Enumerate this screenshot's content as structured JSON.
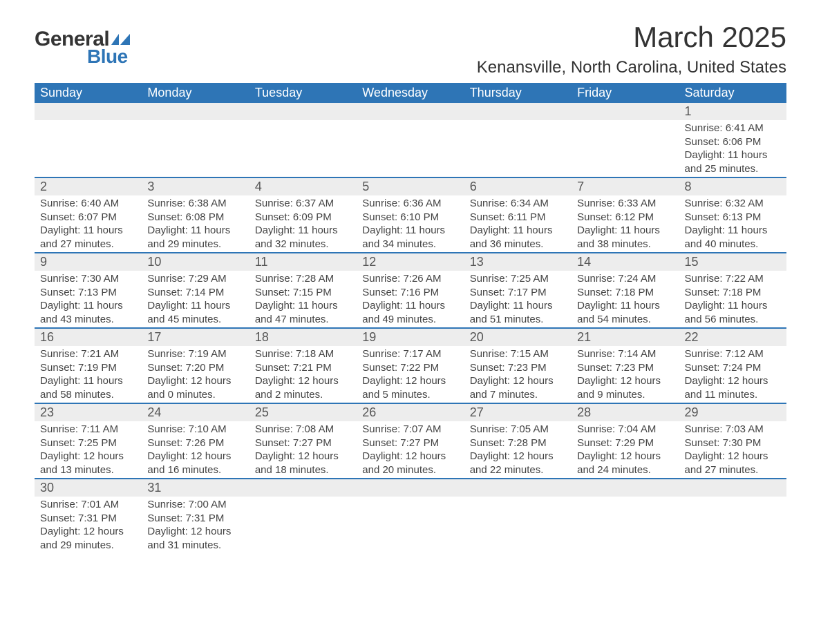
{
  "logo": {
    "general": "General",
    "blue": "Blue",
    "shape_color": "#2e75b6"
  },
  "title": {
    "month": "March 2025",
    "location": "Kenansville, North Carolina, United States"
  },
  "colors": {
    "header_bg": "#2e75b6",
    "header_text": "#ffffff",
    "daynum_bg": "#ededed",
    "text": "#444444",
    "border": "#2e75b6",
    "page_bg": "#ffffff"
  },
  "typography": {
    "title_fontsize": 42,
    "location_fontsize": 24,
    "weekday_fontsize": 18,
    "daynum_fontsize": 18,
    "body_fontsize": 15
  },
  "weekdays": [
    "Sunday",
    "Monday",
    "Tuesday",
    "Wednesday",
    "Thursday",
    "Friday",
    "Saturday"
  ],
  "labels": {
    "sunrise": "Sunrise: ",
    "sunset": "Sunset: ",
    "daylight": "Daylight: "
  },
  "weeks": [
    [
      null,
      null,
      null,
      null,
      null,
      null,
      {
        "n": "1",
        "sr": "6:41 AM",
        "ss": "6:06 PM",
        "dl": "11 hours and 25 minutes."
      }
    ],
    [
      {
        "n": "2",
        "sr": "6:40 AM",
        "ss": "6:07 PM",
        "dl": "11 hours and 27 minutes."
      },
      {
        "n": "3",
        "sr": "6:38 AM",
        "ss": "6:08 PM",
        "dl": "11 hours and 29 minutes."
      },
      {
        "n": "4",
        "sr": "6:37 AM",
        "ss": "6:09 PM",
        "dl": "11 hours and 32 minutes."
      },
      {
        "n": "5",
        "sr": "6:36 AM",
        "ss": "6:10 PM",
        "dl": "11 hours and 34 minutes."
      },
      {
        "n": "6",
        "sr": "6:34 AM",
        "ss": "6:11 PM",
        "dl": "11 hours and 36 minutes."
      },
      {
        "n": "7",
        "sr": "6:33 AM",
        "ss": "6:12 PM",
        "dl": "11 hours and 38 minutes."
      },
      {
        "n": "8",
        "sr": "6:32 AM",
        "ss": "6:13 PM",
        "dl": "11 hours and 40 minutes."
      }
    ],
    [
      {
        "n": "9",
        "sr": "7:30 AM",
        "ss": "7:13 PM",
        "dl": "11 hours and 43 minutes."
      },
      {
        "n": "10",
        "sr": "7:29 AM",
        "ss": "7:14 PM",
        "dl": "11 hours and 45 minutes."
      },
      {
        "n": "11",
        "sr": "7:28 AM",
        "ss": "7:15 PM",
        "dl": "11 hours and 47 minutes."
      },
      {
        "n": "12",
        "sr": "7:26 AM",
        "ss": "7:16 PM",
        "dl": "11 hours and 49 minutes."
      },
      {
        "n": "13",
        "sr": "7:25 AM",
        "ss": "7:17 PM",
        "dl": "11 hours and 51 minutes."
      },
      {
        "n": "14",
        "sr": "7:24 AM",
        "ss": "7:18 PM",
        "dl": "11 hours and 54 minutes."
      },
      {
        "n": "15",
        "sr": "7:22 AM",
        "ss": "7:18 PM",
        "dl": "11 hours and 56 minutes."
      }
    ],
    [
      {
        "n": "16",
        "sr": "7:21 AM",
        "ss": "7:19 PM",
        "dl": "11 hours and 58 minutes."
      },
      {
        "n": "17",
        "sr": "7:19 AM",
        "ss": "7:20 PM",
        "dl": "12 hours and 0 minutes."
      },
      {
        "n": "18",
        "sr": "7:18 AM",
        "ss": "7:21 PM",
        "dl": "12 hours and 2 minutes."
      },
      {
        "n": "19",
        "sr": "7:17 AM",
        "ss": "7:22 PM",
        "dl": "12 hours and 5 minutes."
      },
      {
        "n": "20",
        "sr": "7:15 AM",
        "ss": "7:23 PM",
        "dl": "12 hours and 7 minutes."
      },
      {
        "n": "21",
        "sr": "7:14 AM",
        "ss": "7:23 PM",
        "dl": "12 hours and 9 minutes."
      },
      {
        "n": "22",
        "sr": "7:12 AM",
        "ss": "7:24 PM",
        "dl": "12 hours and 11 minutes."
      }
    ],
    [
      {
        "n": "23",
        "sr": "7:11 AM",
        "ss": "7:25 PM",
        "dl": "12 hours and 13 minutes."
      },
      {
        "n": "24",
        "sr": "7:10 AM",
        "ss": "7:26 PM",
        "dl": "12 hours and 16 minutes."
      },
      {
        "n": "25",
        "sr": "7:08 AM",
        "ss": "7:27 PM",
        "dl": "12 hours and 18 minutes."
      },
      {
        "n": "26",
        "sr": "7:07 AM",
        "ss": "7:27 PM",
        "dl": "12 hours and 20 minutes."
      },
      {
        "n": "27",
        "sr": "7:05 AM",
        "ss": "7:28 PM",
        "dl": "12 hours and 22 minutes."
      },
      {
        "n": "28",
        "sr": "7:04 AM",
        "ss": "7:29 PM",
        "dl": "12 hours and 24 minutes."
      },
      {
        "n": "29",
        "sr": "7:03 AM",
        "ss": "7:30 PM",
        "dl": "12 hours and 27 minutes."
      }
    ],
    [
      {
        "n": "30",
        "sr": "7:01 AM",
        "ss": "7:31 PM",
        "dl": "12 hours and 29 minutes."
      },
      {
        "n": "31",
        "sr": "7:00 AM",
        "ss": "7:31 PM",
        "dl": "12 hours and 31 minutes."
      },
      null,
      null,
      null,
      null,
      null
    ]
  ]
}
